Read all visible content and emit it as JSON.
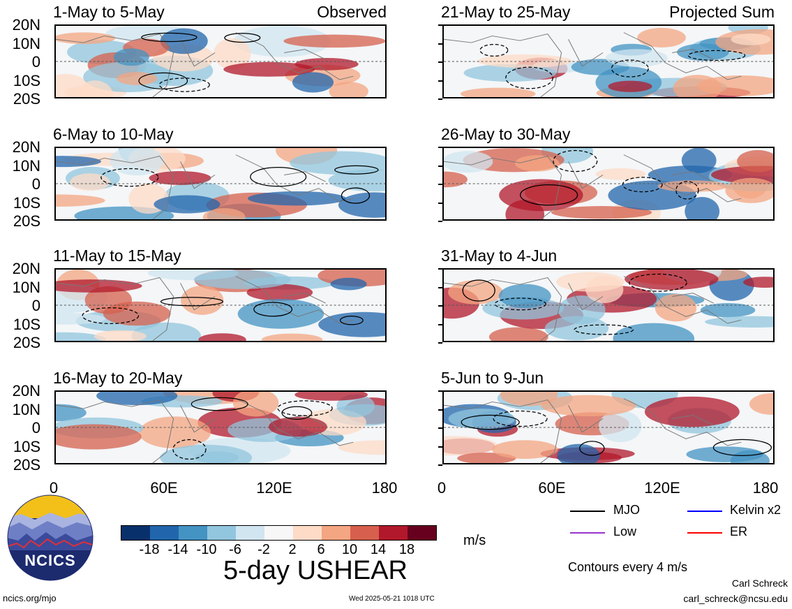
{
  "panels": [
    {
      "label": "1-May to 5-May",
      "tag": "Observed"
    },
    {
      "label": "6-May to 10-May",
      "tag": ""
    },
    {
      "label": "11-May to 15-May",
      "tag": ""
    },
    {
      "label": "16-May to 20-May",
      "tag": ""
    },
    {
      "label": "21-May to 25-May",
      "tag": "Projected Sum"
    },
    {
      "label": "26-May to 30-May",
      "tag": ""
    },
    {
      "label": "31-May to 4-Jun",
      "tag": ""
    },
    {
      "label": "5-Jun to 9-Jun",
      "tag": ""
    }
  ],
  "lat_labels": [
    "20N",
    "10N",
    "0",
    "10S",
    "20S"
  ],
  "lon_labels": [
    "0",
    "60E",
    "120E",
    "180"
  ],
  "colorbar": {
    "colors": [
      "#08306b",
      "#2166ac",
      "#4393c3",
      "#92c5de",
      "#d1e5f0",
      "#f7f7f7",
      "#fddbc7",
      "#f4a582",
      "#d6604d",
      "#b2182b",
      "#67001f"
    ],
    "labels": [
      "-18",
      "-14",
      "-10",
      "-6",
      "-2",
      "2",
      "6",
      "10",
      "14",
      "18"
    ],
    "units": "m/s"
  },
  "title": "5-day USHEAR",
  "legend": {
    "items": [
      {
        "label": "MJO",
        "color": "#000000"
      },
      {
        "label": "Kelvin x2",
        "color": "#0000ff"
      },
      {
        "label": "Low",
        "color": "#9933cc"
      },
      {
        "label": "ER",
        "color": "#ff0000"
      }
    ],
    "contour_note": "Contours every 4 m/s"
  },
  "logo_text": "NCICS",
  "footer": {
    "left": "ncics.org/mjo",
    "center": "Wed 2025-05-21 1018 UTC",
    "author": "Carl Schreck",
    "email": "carl_schreck@ncsu.edu"
  }
}
